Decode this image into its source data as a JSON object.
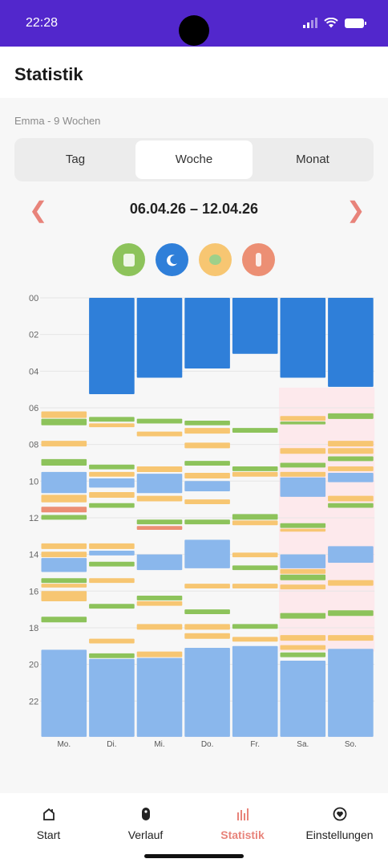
{
  "status": {
    "time": "22:28"
  },
  "header": {
    "title": "Statistik"
  },
  "child_label": "Emma - 9 Wochen",
  "tabs": [
    {
      "label": "Tag",
      "active": false
    },
    {
      "label": "Woche",
      "active": true
    },
    {
      "label": "Monat",
      "active": false
    }
  ],
  "range": {
    "prev": "❮",
    "next": "❯",
    "label": "06.04.26 – 12.04.26"
  },
  "legend_icons": [
    {
      "name": "diaper-icon",
      "color": "#8dc35b"
    },
    {
      "name": "sleep-icon",
      "color": "#2f7fd9"
    },
    {
      "name": "food-icon",
      "color": "#f7c672"
    },
    {
      "name": "bottle-icon",
      "color": "#ec8f74"
    }
  ],
  "colors": {
    "night_sleep": "#2f7fd9",
    "nap": "#8ab7ec",
    "diaper": "#8dc35b",
    "feeding": "#f7c672",
    "bottle": "#ec8f74",
    "highlight_bg": "#fde9ec",
    "accent": "#e8837a"
  },
  "chart_data": {
    "type": "timeline",
    "y_ticks": [
      "00",
      "02",
      "04",
      "06",
      "08",
      "10",
      "12",
      "14",
      "16",
      "18",
      "20",
      "22"
    ],
    "y_range_hours": [
      0,
      24
    ],
    "days": [
      "Mo.",
      "Di.",
      "Mi.",
      "Do.",
      "Fr.",
      "Sa.",
      "So."
    ],
    "highlighted_days": [
      "Sa.",
      "So."
    ],
    "events": [
      [
        {
          "kind": "feeding",
          "start": 6.2,
          "end": 6.6
        },
        {
          "kind": "diaper",
          "start": 6.6,
          "end": 7.0
        },
        {
          "kind": "feeding",
          "start": 7.8,
          "end": 8.15
        },
        {
          "kind": "diaper",
          "start": 8.8,
          "end": 9.2
        },
        {
          "kind": "nap",
          "start": 9.5,
          "end": 10.7
        },
        {
          "kind": "feeding",
          "start": 10.75,
          "end": 11.2
        },
        {
          "kind": "bottle",
          "start": 11.4,
          "end": 11.75
        },
        {
          "kind": "diaper",
          "start": 11.85,
          "end": 12.15
        },
        {
          "kind": "feeding",
          "start": 13.4,
          "end": 13.75
        },
        {
          "kind": "feeding",
          "start": 13.85,
          "end": 14.2
        },
        {
          "kind": "nap",
          "start": 14.2,
          "end": 15.0
        },
        {
          "kind": "diaper",
          "start": 15.3,
          "end": 15.6
        },
        {
          "kind": "feeding",
          "start": 15.6,
          "end": 15.85
        },
        {
          "kind": "feeding",
          "start": 16.0,
          "end": 16.6
        },
        {
          "kind": "diaper",
          "start": 17.4,
          "end": 17.75
        },
        {
          "kind": "nap",
          "start": 19.2,
          "end": 24
        }
      ],
      [
        {
          "kind": "night",
          "start": 0,
          "end": 5.3
        },
        {
          "kind": "diaper",
          "start": 6.5,
          "end": 6.8
        },
        {
          "kind": "feeding",
          "start": 6.85,
          "end": 7.1
        },
        {
          "kind": "diaper",
          "start": 9.1,
          "end": 9.4
        },
        {
          "kind": "feeding",
          "start": 9.5,
          "end": 9.8
        },
        {
          "kind": "nap",
          "start": 9.85,
          "end": 10.4
        },
        {
          "kind": "feeding",
          "start": 10.6,
          "end": 10.95
        },
        {
          "kind": "diaper",
          "start": 11.2,
          "end": 11.5
        },
        {
          "kind": "feeding",
          "start": 13.4,
          "end": 13.75
        },
        {
          "kind": "nap",
          "start": 13.8,
          "end": 14.1
        },
        {
          "kind": "diaper",
          "start": 14.4,
          "end": 14.7
        },
        {
          "kind": "feeding",
          "start": 15.3,
          "end": 15.6
        },
        {
          "kind": "diaper",
          "start": 16.7,
          "end": 17.0
        },
        {
          "kind": "feeding",
          "start": 18.6,
          "end": 18.9
        },
        {
          "kind": "diaper",
          "start": 19.4,
          "end": 19.7
        },
        {
          "kind": "nap",
          "start": 19.7,
          "end": 24
        }
      ],
      [
        {
          "kind": "night",
          "start": 0,
          "end": 4.4
        },
        {
          "kind": "diaper",
          "start": 6.6,
          "end": 6.9
        },
        {
          "kind": "feeding",
          "start": 7.3,
          "end": 7.6
        },
        {
          "kind": "feeding",
          "start": 9.2,
          "end": 9.55
        },
        {
          "kind": "nap",
          "start": 9.6,
          "end": 10.7
        },
        {
          "kind": "feeding",
          "start": 10.8,
          "end": 11.15
        },
        {
          "kind": "diaper",
          "start": 12.1,
          "end": 12.4
        },
        {
          "kind": "bottle",
          "start": 12.45,
          "end": 12.7
        },
        {
          "kind": "nap",
          "start": 14.0,
          "end": 14.9
        },
        {
          "kind": "diaper",
          "start": 16.25,
          "end": 16.55
        },
        {
          "kind": "feeding",
          "start": 16.55,
          "end": 16.85
        },
        {
          "kind": "feeding",
          "start": 17.8,
          "end": 18.15
        },
        {
          "kind": "feeding",
          "start": 19.3,
          "end": 19.65
        },
        {
          "kind": "nap",
          "start": 19.65,
          "end": 24
        }
      ],
      [
        {
          "kind": "night",
          "start": 0,
          "end": 3.9
        },
        {
          "kind": "diaper",
          "start": 6.7,
          "end": 7.0
        },
        {
          "kind": "feeding",
          "start": 7.1,
          "end": 7.45
        },
        {
          "kind": "feeding",
          "start": 7.9,
          "end": 8.25
        },
        {
          "kind": "diaper",
          "start": 8.9,
          "end": 9.2
        },
        {
          "kind": "feeding",
          "start": 9.55,
          "end": 9.9
        },
        {
          "kind": "nap",
          "start": 10.0,
          "end": 10.6
        },
        {
          "kind": "feeding",
          "start": 11.0,
          "end": 11.3
        },
        {
          "kind": "diaper",
          "start": 12.1,
          "end": 12.4
        },
        {
          "kind": "nap",
          "start": 13.2,
          "end": 14.8
        },
        {
          "kind": "feeding",
          "start": 15.6,
          "end": 15.9
        },
        {
          "kind": "diaper",
          "start": 17.0,
          "end": 17.3
        },
        {
          "kind": "feeding",
          "start": 17.8,
          "end": 18.15
        },
        {
          "kind": "feeding",
          "start": 18.3,
          "end": 18.65
        },
        {
          "kind": "nap",
          "start": 19.1,
          "end": 24
        }
      ],
      [
        {
          "kind": "night",
          "start": 0,
          "end": 3.1
        },
        {
          "kind": "diaper",
          "start": 7.1,
          "end": 7.4
        },
        {
          "kind": "diaper",
          "start": 9.2,
          "end": 9.5
        },
        {
          "kind": "feeding",
          "start": 9.5,
          "end": 9.8
        },
        {
          "kind": "diaper",
          "start": 11.8,
          "end": 12.15
        },
        {
          "kind": "feeding",
          "start": 12.15,
          "end": 12.45
        },
        {
          "kind": "feeding",
          "start": 13.9,
          "end": 14.2
        },
        {
          "kind": "diaper",
          "start": 14.6,
          "end": 14.9
        },
        {
          "kind": "feeding",
          "start": 15.6,
          "end": 15.9
        },
        {
          "kind": "diaper",
          "start": 17.8,
          "end": 18.1
        },
        {
          "kind": "feeding",
          "start": 18.5,
          "end": 18.8
        },
        {
          "kind": "nap",
          "start": 19.0,
          "end": 24
        }
      ],
      [
        {
          "kind": "night",
          "start": 0,
          "end": 4.4
        },
        {
          "kind": "feeding",
          "start": 6.45,
          "end": 6.75
        },
        {
          "kind": "diaper",
          "start": 6.75,
          "end": 6.95
        },
        {
          "kind": "feeding",
          "start": 8.2,
          "end": 8.55
        },
        {
          "kind": "diaper",
          "start": 9.0,
          "end": 9.3
        },
        {
          "kind": "feeding",
          "start": 9.5,
          "end": 9.8
        },
        {
          "kind": "nap",
          "start": 9.8,
          "end": 10.9
        },
        {
          "kind": "diaper",
          "start": 12.3,
          "end": 12.6
        },
        {
          "kind": "feeding",
          "start": 12.6,
          "end": 12.8
        },
        {
          "kind": "nap",
          "start": 14.0,
          "end": 14.8
        },
        {
          "kind": "feeding",
          "start": 14.8,
          "end": 15.1
        },
        {
          "kind": "diaper",
          "start": 15.1,
          "end": 15.45
        },
        {
          "kind": "feeding",
          "start": 15.65,
          "end": 15.95
        },
        {
          "kind": "diaper",
          "start": 17.2,
          "end": 17.55
        },
        {
          "kind": "feeding",
          "start": 18.4,
          "end": 18.75
        },
        {
          "kind": "feeding",
          "start": 18.95,
          "end": 19.25
        },
        {
          "kind": "diaper",
          "start": 19.35,
          "end": 19.65
        },
        {
          "kind": "nap",
          "start": 19.8,
          "end": 24
        }
      ],
      [
        {
          "kind": "night",
          "start": 0,
          "end": 4.9
        },
        {
          "kind": "diaper",
          "start": 6.3,
          "end": 6.65
        },
        {
          "kind": "feeding",
          "start": 7.8,
          "end": 8.15
        },
        {
          "kind": "feeding",
          "start": 8.2,
          "end": 8.55
        },
        {
          "kind": "diaper",
          "start": 8.65,
          "end": 8.95
        },
        {
          "kind": "feeding",
          "start": 9.2,
          "end": 9.5
        },
        {
          "kind": "nap",
          "start": 9.55,
          "end": 10.1
        },
        {
          "kind": "feeding",
          "start": 10.8,
          "end": 11.15
        },
        {
          "kind": "diaper",
          "start": 11.2,
          "end": 11.5
        },
        {
          "kind": "nap",
          "start": 13.55,
          "end": 14.5
        },
        {
          "kind": "feeding",
          "start": 15.4,
          "end": 15.75
        },
        {
          "kind": "diaper",
          "start": 17.05,
          "end": 17.4
        },
        {
          "kind": "feeding",
          "start": 18.4,
          "end": 18.75
        },
        {
          "kind": "nap",
          "start": 19.15,
          "end": 24
        }
      ]
    ]
  },
  "nav": [
    {
      "label": "Start",
      "icon": "home-icon",
      "active": false
    },
    {
      "label": "Verlauf",
      "icon": "pacifier-icon",
      "active": false
    },
    {
      "label": "Statistik",
      "icon": "stats-icon",
      "active": true
    },
    {
      "label": "Einstellungen",
      "icon": "heart-gear-icon",
      "active": false
    }
  ]
}
